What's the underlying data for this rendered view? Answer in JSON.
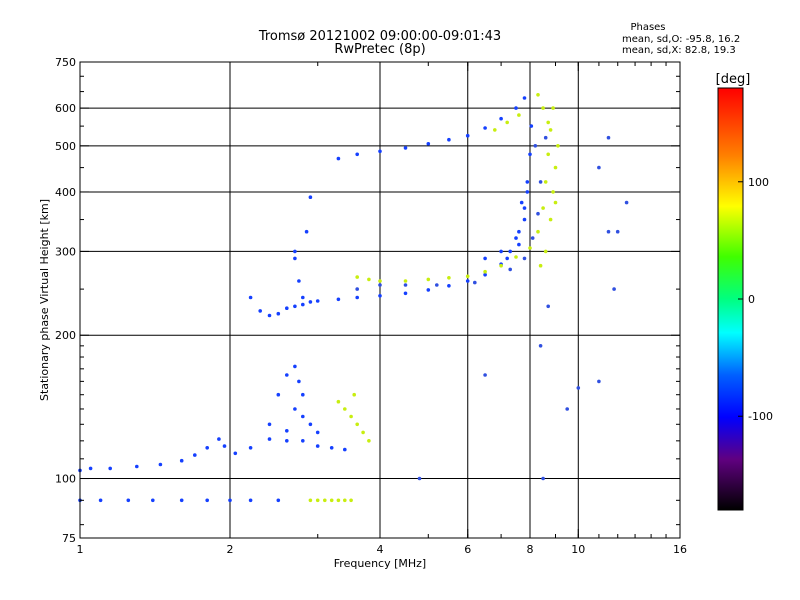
{
  "chart_data": {
    "type": "scatter",
    "title_line1": "Tromsø 20121002 09:00:00-09:01:43",
    "title_line2": "RwPretec (8p)",
    "xlabel": "Frequency [MHz]",
    "ylabel": "Stationary phase Virtual Height [km]",
    "x_scale": "log",
    "y_scale": "log",
    "xlim": [
      1,
      16
    ],
    "ylim": [
      75,
      750
    ],
    "xticks": [
      1,
      2,
      4,
      6,
      8,
      10,
      16
    ],
    "yticks": [
      75,
      100,
      200,
      300,
      400,
      500,
      600,
      750
    ],
    "xgrid": [
      2,
      4,
      6,
      8,
      10
    ],
    "ygrid": [
      100,
      200,
      300,
      400,
      500,
      600
    ],
    "stats": {
      "heading": "Phases",
      "line_o": "mean, sd,O: -95.8, 16.2",
      "line_x": "mean, sd,X:  82.8, 19.3"
    },
    "colorbar": {
      "label": "[deg]",
      "ticks": [
        100,
        0,
        -100
      ],
      "range": [
        -180,
        180
      ]
    },
    "series": [
      {
        "points": [
          [
            1.0,
            90
          ],
          [
            1.1,
            90
          ],
          [
            1.25,
            90
          ],
          [
            1.4,
            90
          ],
          [
            1.6,
            90
          ],
          [
            1.8,
            90
          ],
          [
            2.0,
            90
          ],
          [
            2.2,
            90
          ],
          [
            2.5,
            90
          ],
          [
            1.0,
            104
          ],
          [
            1.05,
            105
          ],
          [
            1.15,
            105
          ],
          [
            1.3,
            106
          ],
          [
            1.45,
            107
          ],
          [
            1.6,
            109
          ],
          [
            1.7,
            112
          ],
          [
            1.8,
            116
          ],
          [
            1.9,
            121
          ],
          [
            1.95,
            117
          ],
          [
            2.05,
            113
          ],
          [
            2.2,
            116
          ],
          [
            2.4,
            121
          ],
          [
            2.6,
            126
          ],
          [
            2.8,
            120
          ],
          [
            3.0,
            117
          ],
          [
            3.2,
            116
          ],
          [
            3.4,
            115
          ],
          [
            2.4,
            130
          ],
          [
            2.5,
            150
          ],
          [
            2.6,
            165
          ],
          [
            2.7,
            172
          ],
          [
            2.75,
            160
          ],
          [
            2.8,
            150
          ],
          [
            2.7,
            140
          ],
          [
            2.9,
            130
          ],
          [
            3.0,
            125
          ],
          [
            2.6,
            120
          ],
          [
            2.8,
            135
          ],
          [
            2.2,
            240
          ],
          [
            2.3,
            225
          ],
          [
            2.4,
            220
          ],
          [
            2.5,
            222
          ],
          [
            2.6,
            228
          ],
          [
            2.7,
            230
          ],
          [
            2.8,
            232
          ],
          [
            2.9,
            235
          ],
          [
            3.0,
            236
          ],
          [
            3.3,
            238
          ],
          [
            3.6,
            240
          ],
          [
            4.0,
            242
          ],
          [
            4.5,
            245
          ],
          [
            5.0,
            249
          ],
          [
            5.5,
            254
          ],
          [
            6.0,
            260
          ],
          [
            6.5,
            268
          ],
          [
            7.0,
            282
          ],
          [
            7.3,
            300
          ],
          [
            7.6,
            330
          ],
          [
            7.8,
            370
          ],
          [
            7.9,
            420
          ],
          [
            8.0,
            480
          ],
          [
            8.05,
            550
          ],
          [
            2.7,
            300
          ],
          [
            2.75,
            260
          ],
          [
            2.8,
            240
          ],
          [
            2.85,
            330
          ],
          [
            2.9,
            390
          ],
          [
            2.7,
            290
          ],
          [
            3.3,
            470
          ],
          [
            3.6,
            480
          ],
          [
            4.0,
            487
          ],
          [
            4.5,
            495
          ],
          [
            5.0,
            505
          ],
          [
            5.5,
            515
          ],
          [
            6.0,
            525
          ],
          [
            6.5,
            545
          ],
          [
            7.0,
            570
          ],
          [
            7.5,
            600
          ],
          [
            7.8,
            630
          ],
          [
            6.5,
            290
          ],
          [
            7.0,
            300
          ],
          [
            7.5,
            320
          ],
          [
            7.8,
            350
          ],
          [
            7.6,
            310
          ],
          [
            7.9,
            400
          ],
          [
            7.2,
            290
          ],
          [
            7.7,
            380
          ]
        ]
      },
      {
        "points": [
          [
            2.9,
            90
          ],
          [
            3.0,
            90
          ],
          [
            3.1,
            90
          ],
          [
            3.2,
            90
          ],
          [
            3.3,
            90
          ],
          [
            3.4,
            90
          ],
          [
            3.5,
            90
          ],
          [
            3.3,
            145
          ],
          [
            3.4,
            140
          ],
          [
            3.5,
            135
          ],
          [
            3.6,
            130
          ],
          [
            3.7,
            125
          ],
          [
            3.8,
            120
          ],
          [
            3.55,
            150
          ],
          [
            3.6,
            265
          ],
          [
            3.8,
            262
          ],
          [
            4.0,
            260
          ],
          [
            4.5,
            260
          ],
          [
            5.0,
            262
          ],
          [
            5.5,
            264
          ],
          [
            6.0,
            266
          ],
          [
            6.5,
            272
          ],
          [
            7.0,
            280
          ],
          [
            7.5,
            292
          ],
          [
            8.0,
            305
          ],
          [
            8.3,
            330
          ],
          [
            8.5,
            370
          ],
          [
            8.6,
            420
          ],
          [
            8.7,
            480
          ],
          [
            8.8,
            540
          ],
          [
            8.9,
            600
          ],
          [
            8.7,
            560
          ],
          [
            8.5,
            600
          ],
          [
            8.3,
            640
          ],
          [
            8.9,
            400
          ],
          [
            9.0,
            450
          ],
          [
            9.1,
            500
          ],
          [
            8.8,
            350
          ],
          [
            8.6,
            300
          ],
          [
            8.4,
            280
          ],
          [
            9.0,
            380
          ],
          [
            6.8,
            540
          ],
          [
            7.2,
            560
          ],
          [
            7.6,
            580
          ]
        ]
      },
      {
        "points": [
          [
            3.6,
            250
          ],
          [
            4.0,
            255
          ],
          [
            4.5,
            255
          ],
          [
            5.2,
            255
          ],
          [
            6.2,
            258
          ],
          [
            7.3,
            275
          ],
          [
            7.8,
            290
          ],
          [
            8.1,
            320
          ],
          [
            8.3,
            360
          ],
          [
            8.4,
            420
          ],
          [
            8.2,
            500
          ],
          [
            8.6,
            520
          ],
          [
            11.5,
            330
          ],
          [
            11.8,
            250
          ],
          [
            12,
            330
          ],
          [
            12.5,
            380
          ],
          [
            11,
            450
          ],
          [
            11.5,
            520
          ],
          [
            8.7,
            230
          ],
          [
            8.4,
            190
          ],
          [
            10,
            155
          ],
          [
            11,
            160
          ],
          [
            9.5,
            140
          ],
          [
            6.5,
            165
          ],
          [
            4.8,
            100
          ],
          [
            8.5,
            100
          ]
        ]
      }
    ]
  }
}
